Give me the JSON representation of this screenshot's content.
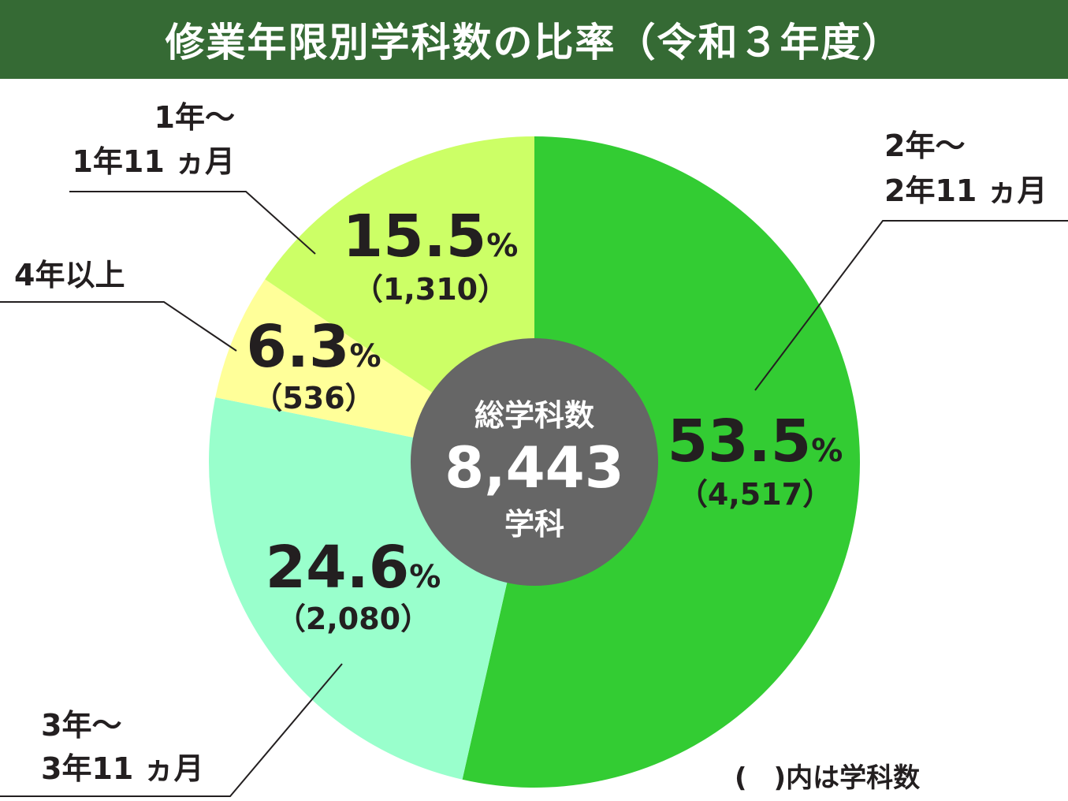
{
  "header": {
    "title": "修業年限別学科数の比率（令和３年度）"
  },
  "chart_data": {
    "type": "pie",
    "title": "修業年限別学科数の比率（令和３年度）",
    "total_label": "総学科数",
    "total_value": "8,443",
    "total_unit": "学科",
    "note": "(　)内は学科数",
    "slices": [
      {
        "label_lines": [
          "2年～",
          "2年11 ヵ月"
        ],
        "percent": 53.5,
        "percent_text": "53.5",
        "count": 4517,
        "count_text": "（4,517）",
        "color": "#33cc33"
      },
      {
        "label_lines": [
          "3年～",
          "3年11 ヵ月"
        ],
        "percent": 24.6,
        "percent_text": "24.6",
        "count": 2080,
        "count_text": "（2,080）",
        "color": "#99ffcc"
      },
      {
        "label_lines": [
          "4年以上"
        ],
        "percent": 6.3,
        "percent_text": "6.3",
        "count": 536,
        "count_text": "（536）",
        "color": "#ffff99"
      },
      {
        "label_lines": [
          "1年～",
          "1年11 ヵ月"
        ],
        "percent": 15.5,
        "percent_text": "15.5",
        "count": 1310,
        "count_text": "（1,310）",
        "color": "#ccff66"
      }
    ],
    "percent_sign": "%",
    "center_color": "#666666",
    "leader_color": "#231f20"
  }
}
